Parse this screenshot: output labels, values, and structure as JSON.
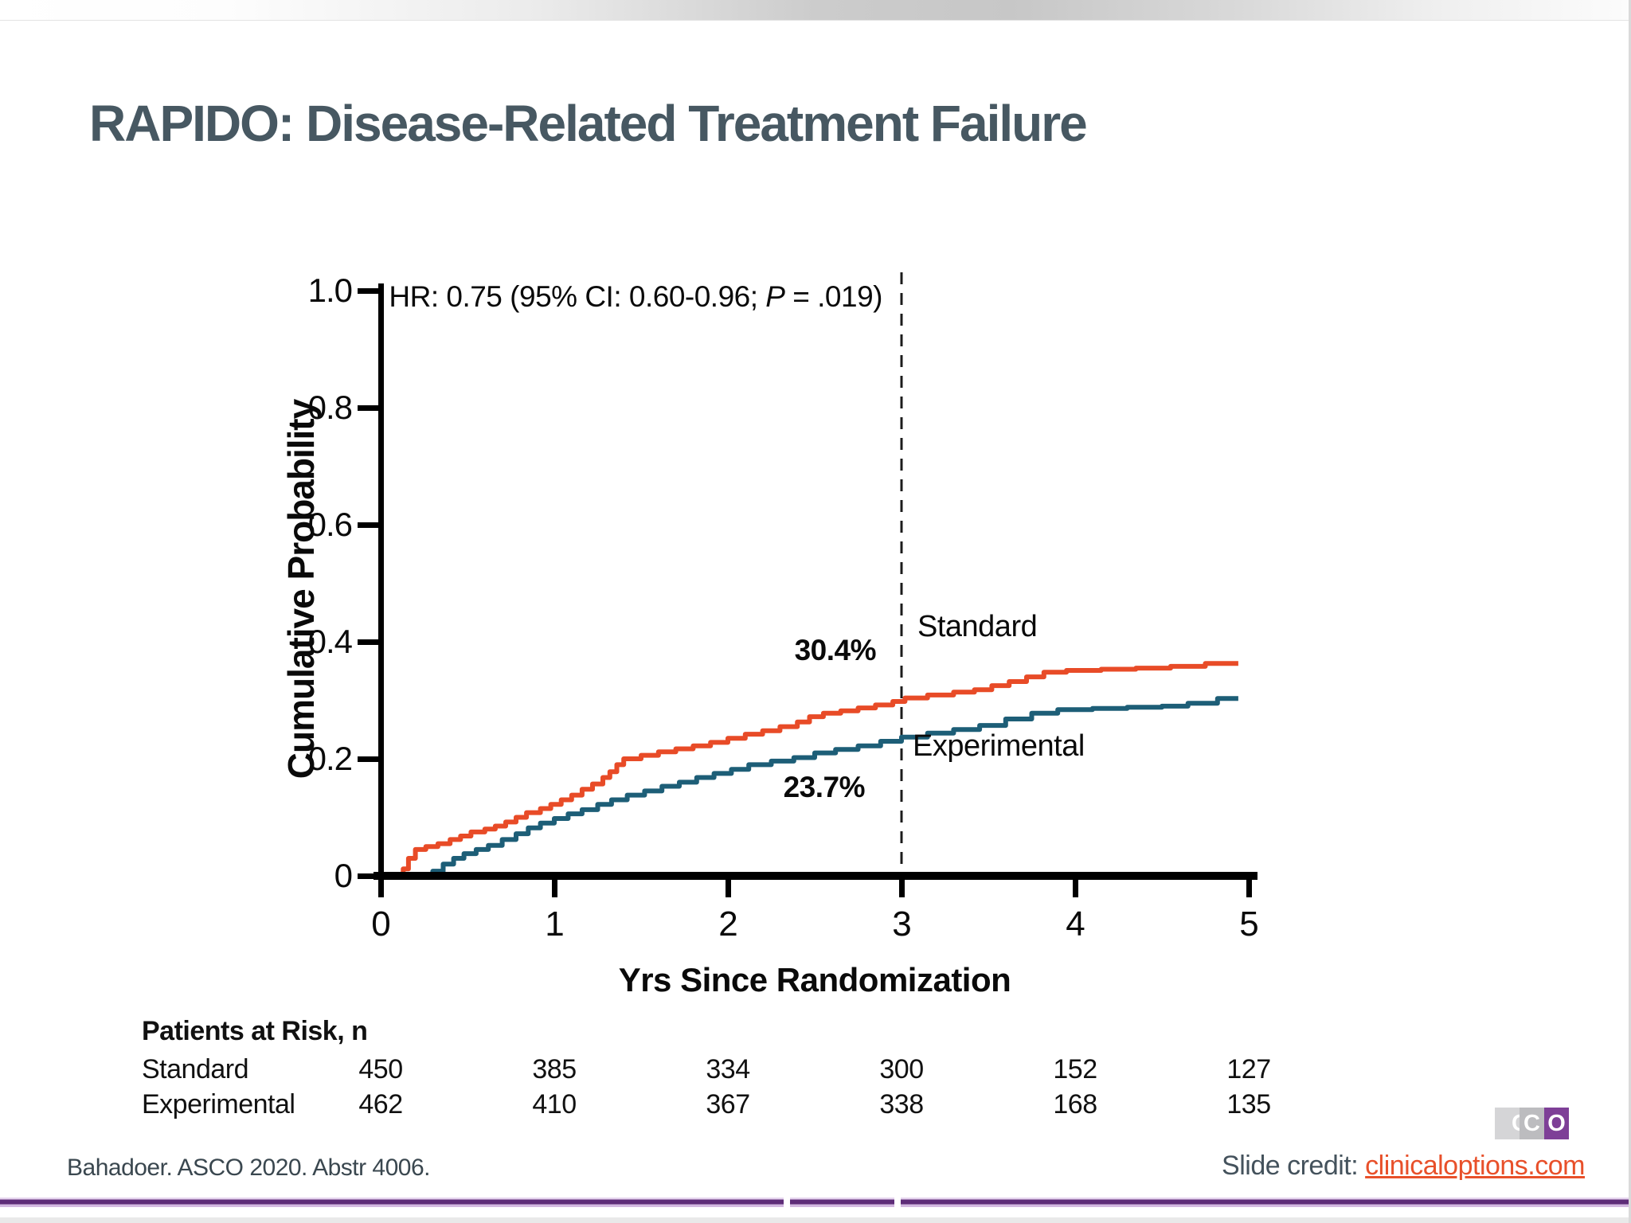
{
  "slide": {
    "title": "RAPIDO: Disease-Related Treatment Failure",
    "citation": "Bahadoer. ASCO 2020. Abstr 4006.",
    "credit_label": "Slide credit: ",
    "credit_link": "clinicaloptions.com",
    "logo": {
      "letters": [
        "C",
        "C",
        "O"
      ],
      "purple": "#7e3f97"
    }
  },
  "colors": {
    "standard": "#e84b27",
    "experimental": "#1d5e77",
    "title_text": "#475862",
    "link": "#e8502a",
    "rule_purple": "#5e2c78"
  },
  "chart_data": {
    "type": "line",
    "subtype": "kaplan-meier-step",
    "title": "",
    "xlabel": "Yrs Since Randomization",
    "ylabel": "Cumulative Probability",
    "xlim": [
      0,
      5
    ],
    "ylim": [
      0,
      1.0
    ],
    "grid": false,
    "x_ticks": [
      "0",
      "1",
      "2",
      "3",
      "4",
      "5"
    ],
    "x_tick_values": [
      0,
      1,
      2,
      3,
      4,
      5
    ],
    "y_ticks": [
      "1.0",
      "0.8",
      "0.6",
      "0.4",
      "0.2",
      "0"
    ],
    "y_tick_values": [
      1.0,
      0.8,
      0.6,
      0.4,
      0.2,
      0
    ],
    "hr_annotation": {
      "prefix": "HR: 0.75 (95% CI: 0.60-0.96; ",
      "italic": "P",
      "suffix": " = .019)"
    },
    "reference_line_x": 3,
    "series": [
      {
        "name": "Standard",
        "color": "#e84b27",
        "value_at_3yr": 0.304,
        "label_3yr": "30.4%",
        "points": [
          [
            0,
            0
          ],
          [
            0.13,
            0.012
          ],
          [
            0.16,
            0.03
          ],
          [
            0.2,
            0.045
          ],
          [
            0.26,
            0.05
          ],
          [
            0.33,
            0.055
          ],
          [
            0.4,
            0.062
          ],
          [
            0.46,
            0.068
          ],
          [
            0.52,
            0.075
          ],
          [
            0.6,
            0.08
          ],
          [
            0.66,
            0.085
          ],
          [
            0.72,
            0.092
          ],
          [
            0.78,
            0.1
          ],
          [
            0.84,
            0.108
          ],
          [
            0.92,
            0.115
          ],
          [
            0.98,
            0.122
          ],
          [
            1.04,
            0.13
          ],
          [
            1.1,
            0.138
          ],
          [
            1.16,
            0.148
          ],
          [
            1.22,
            0.157
          ],
          [
            1.28,
            0.168
          ],
          [
            1.32,
            0.178
          ],
          [
            1.36,
            0.19
          ],
          [
            1.4,
            0.2
          ],
          [
            1.5,
            0.206
          ],
          [
            1.6,
            0.212
          ],
          [
            1.7,
            0.217
          ],
          [
            1.8,
            0.222
          ],
          [
            1.9,
            0.228
          ],
          [
            2.0,
            0.235
          ],
          [
            2.1,
            0.242
          ],
          [
            2.2,
            0.248
          ],
          [
            2.3,
            0.255
          ],
          [
            2.4,
            0.263
          ],
          [
            2.47,
            0.272
          ],
          [
            2.55,
            0.278
          ],
          [
            2.65,
            0.282
          ],
          [
            2.75,
            0.287
          ],
          [
            2.85,
            0.292
          ],
          [
            2.95,
            0.298
          ],
          [
            3.02,
            0.304
          ],
          [
            3.15,
            0.309
          ],
          [
            3.3,
            0.314
          ],
          [
            3.42,
            0.318
          ],
          [
            3.52,
            0.325
          ],
          [
            3.62,
            0.332
          ],
          [
            3.72,
            0.34
          ],
          [
            3.82,
            0.348
          ],
          [
            3.95,
            0.351
          ],
          [
            4.15,
            0.353
          ],
          [
            4.35,
            0.355
          ],
          [
            4.55,
            0.358
          ],
          [
            4.75,
            0.363
          ],
          [
            4.94,
            0.363
          ]
        ]
      },
      {
        "name": "Experimental",
        "color": "#1d5e77",
        "value_at_3yr": 0.237,
        "label_3yr": "23.7%",
        "points": [
          [
            0,
            0
          ],
          [
            0.3,
            0.008
          ],
          [
            0.36,
            0.02
          ],
          [
            0.42,
            0.03
          ],
          [
            0.48,
            0.038
          ],
          [
            0.55,
            0.045
          ],
          [
            0.62,
            0.052
          ],
          [
            0.7,
            0.062
          ],
          [
            0.78,
            0.072
          ],
          [
            0.85,
            0.082
          ],
          [
            0.92,
            0.09
          ],
          [
            1.0,
            0.098
          ],
          [
            1.08,
            0.106
          ],
          [
            1.16,
            0.113
          ],
          [
            1.25,
            0.122
          ],
          [
            1.33,
            0.13
          ],
          [
            1.42,
            0.138
          ],
          [
            1.52,
            0.145
          ],
          [
            1.62,
            0.153
          ],
          [
            1.72,
            0.16
          ],
          [
            1.82,
            0.168
          ],
          [
            1.92,
            0.175
          ],
          [
            2.02,
            0.182
          ],
          [
            2.12,
            0.19
          ],
          [
            2.25,
            0.196
          ],
          [
            2.38,
            0.202
          ],
          [
            2.5,
            0.21
          ],
          [
            2.62,
            0.216
          ],
          [
            2.75,
            0.222
          ],
          [
            2.88,
            0.23
          ],
          [
            3.0,
            0.237
          ],
          [
            3.15,
            0.244
          ],
          [
            3.3,
            0.25
          ],
          [
            3.45,
            0.257
          ],
          [
            3.6,
            0.268
          ],
          [
            3.75,
            0.278
          ],
          [
            3.9,
            0.284
          ],
          [
            4.1,
            0.286
          ],
          [
            4.3,
            0.288
          ],
          [
            4.5,
            0.29
          ],
          [
            4.65,
            0.295
          ],
          [
            4.82,
            0.303
          ],
          [
            4.94,
            0.303
          ]
        ]
      }
    ],
    "risk_table": {
      "header": "Patients at Risk, n",
      "times": [
        0,
        1,
        2,
        3,
        4,
        5
      ],
      "rows": [
        {
          "name": "Standard",
          "values": [
            "450",
            "385",
            "334",
            "300",
            "152",
            "127"
          ]
        },
        {
          "name": "Experimental",
          "values": [
            "462",
            "410",
            "367",
            "338",
            "168",
            "135"
          ]
        }
      ]
    }
  }
}
